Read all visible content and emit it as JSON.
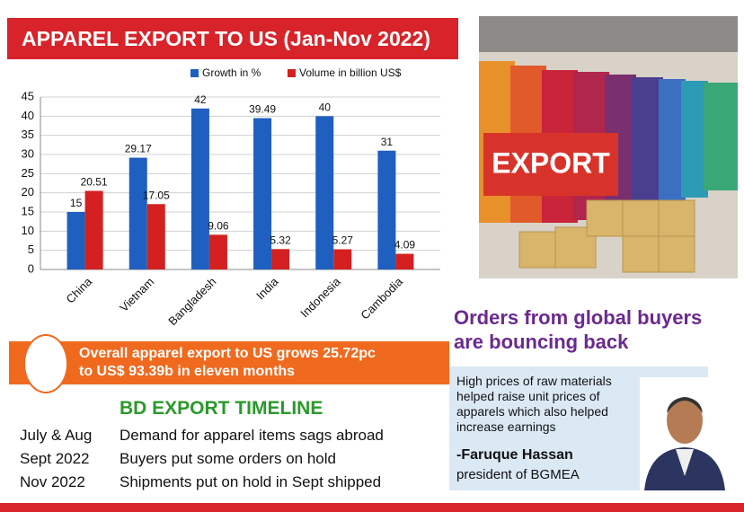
{
  "chart_data": {
    "type": "bar",
    "title": "APPAREL EXPORT TO US (Jan-Nov 2022)",
    "categories": [
      "China",
      "Vietnam",
      "Bangladesh",
      "India",
      "Indonesia",
      "Cambodia"
    ],
    "series": [
      {
        "name": "Growth in %",
        "color": "#1f5fbf",
        "values": [
          15,
          29.17,
          42,
          39.49,
          40,
          31
        ]
      },
      {
        "name": "Volume in billion US$",
        "color": "#d42020",
        "values": [
          20.51,
          17.05,
          9.06,
          5.32,
          5.27,
          4.09
        ]
      }
    ],
    "ylim": [
      0,
      45
    ],
    "yticks": [
      0,
      5,
      10,
      15,
      20,
      25,
      30,
      35,
      40,
      45
    ],
    "grid": true
  },
  "photo_text": "EXPORT",
  "headline": {
    "lines": [
      "Orders from global buyers",
      "are bouncing back"
    ]
  },
  "banner": {
    "lines": [
      "Overall apparel export to US grows 25.72pc",
      "to US$ 93.39b in eleven months"
    ]
  },
  "timeline": {
    "title": "BD EXPORT TIMELINE",
    "rows": [
      {
        "date": "July & Aug",
        "event": "Demand for apparel items sags abroad"
      },
      {
        "date": "Sept 2022",
        "event": "Buyers put some orders on hold"
      },
      {
        "date": "Nov 2022",
        "event": "Shipments put on hold in Sept shipped"
      }
    ]
  },
  "quote": {
    "lines": [
      "High prices of raw materials",
      "helped raise unit prices of",
      "apparels which also helped",
      "increase earnings"
    ],
    "name": "-Faruque Hassan",
    "role": "president of BGMEA"
  }
}
